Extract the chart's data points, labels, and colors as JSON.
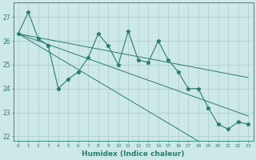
{
  "xlabel": "Humidex (Indice chaleur)",
  "x": [
    0,
    1,
    2,
    3,
    4,
    5,
    6,
    7,
    8,
    9,
    10,
    11,
    12,
    13,
    14,
    15,
    16,
    17,
    18,
    19,
    20,
    21,
    22,
    23
  ],
  "y_data": [
    26.3,
    27.2,
    26.1,
    25.8,
    24.0,
    24.4,
    24.7,
    25.3,
    26.3,
    25.8,
    25.0,
    26.4,
    25.2,
    25.1,
    26.0,
    25.2,
    24.7,
    24.0,
    24.0,
    23.2,
    22.5,
    22.3,
    22.6,
    22.5
  ],
  "y_line1": [
    26.3,
    26.05,
    25.8,
    25.55,
    25.3,
    25.05,
    24.8,
    24.55,
    24.3,
    24.05,
    23.8,
    23.55,
    23.3,
    23.05,
    22.8,
    22.55,
    22.3,
    22.05,
    21.8,
    21.55,
    21.3,
    21.05,
    20.8,
    20.55
  ],
  "y_line2": [
    26.3,
    26.15,
    26.0,
    25.85,
    25.7,
    25.55,
    25.4,
    25.25,
    25.1,
    24.95,
    24.8,
    24.65,
    24.5,
    24.35,
    24.2,
    24.05,
    23.9,
    23.75,
    23.6,
    23.45,
    23.3,
    23.15,
    23.0,
    22.85
  ],
  "y_line3": [
    26.3,
    26.22,
    26.14,
    26.06,
    25.98,
    25.9,
    25.82,
    25.74,
    25.66,
    25.58,
    25.5,
    25.42,
    25.34,
    25.26,
    25.18,
    25.1,
    25.02,
    24.94,
    24.86,
    24.78,
    24.7,
    24.62,
    24.54,
    24.46
  ],
  "color": "#2a7d6e",
  "bg_color": "#cde8e8",
  "grid_color": "#b0d0d0",
  "ylim": [
    21.8,
    27.6
  ],
  "xlim": [
    -0.5,
    23.5
  ],
  "yticks": [
    22,
    23,
    24,
    25,
    26,
    27
  ],
  "xticks": [
    0,
    1,
    2,
    3,
    4,
    5,
    6,
    7,
    8,
    9,
    10,
    11,
    12,
    13,
    14,
    15,
    16,
    17,
    18,
    19,
    20,
    21,
    22,
    23
  ]
}
